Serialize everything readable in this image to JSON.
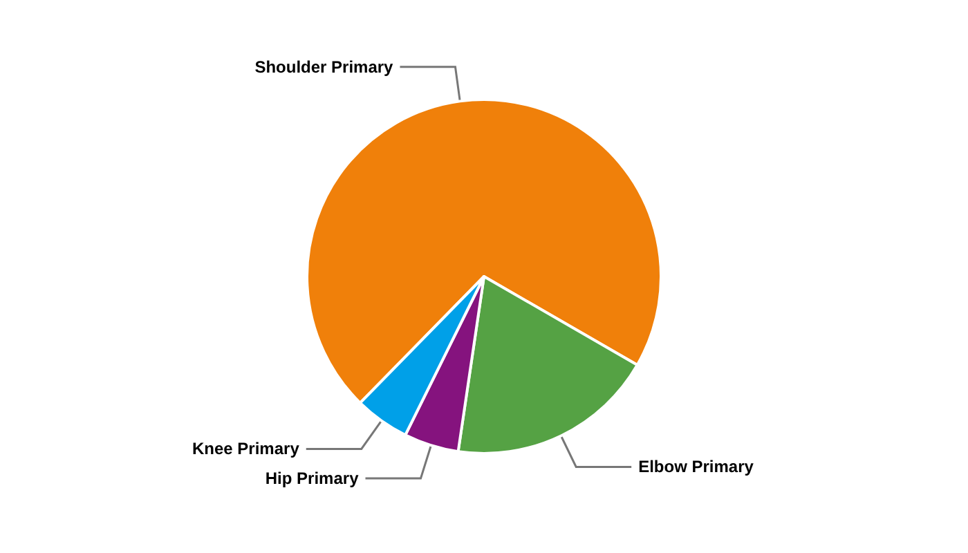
{
  "chart_data": {
    "type": "pie",
    "categories": [
      "Shoulder Primary",
      "Elbow Primary",
      "Hip Primary",
      "Knee Primary"
    ],
    "values": [
      71,
      19,
      5,
      5
    ],
    "colors": [
      "#f0800a",
      "#55a244",
      "#85137e",
      "#00a0e8"
    ]
  }
}
